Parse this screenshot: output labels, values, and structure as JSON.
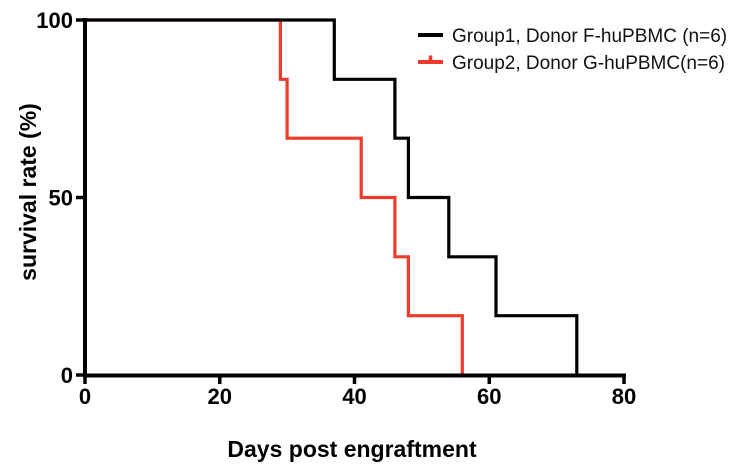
{
  "chart_data": {
    "type": "line",
    "subtype": "kaplan-meier-survival-step",
    "title": "",
    "xlabel": "Days post engraftment",
    "ylabel": "survival rate (%)",
    "xlim": [
      0,
      80
    ],
    "ylim": [
      0,
      100
    ],
    "x_ticks": [
      0,
      20,
      40,
      60,
      80
    ],
    "y_ticks": [
      0,
      50,
      100
    ],
    "grid": false,
    "legend_position": "top-right",
    "series": [
      {
        "name": "Group1, Donor F-huPBMC (n=6)",
        "color": "#000000",
        "n": 6,
        "start": {
          "day": 0,
          "survival_pct": 100
        },
        "steps": [
          {
            "day": 37,
            "survival_pct": 83.3
          },
          {
            "day": 46,
            "survival_pct": 66.7
          },
          {
            "day": 48,
            "survival_pct": 50
          },
          {
            "day": 54,
            "survival_pct": 33.3
          },
          {
            "day": 61,
            "survival_pct": 16.7
          },
          {
            "day": 73,
            "survival_pct": 0
          }
        ]
      },
      {
        "name": "Group2, Donor G-huPBMC(n=6)",
        "color": "#ef3b2c",
        "n": 6,
        "start": {
          "day": 0,
          "survival_pct": 100
        },
        "steps": [
          {
            "day": 29,
            "survival_pct": 83.3
          },
          {
            "day": 30,
            "survival_pct": 66.7
          },
          {
            "day": 41,
            "survival_pct": 50
          },
          {
            "day": 46,
            "survival_pct": 33.3
          },
          {
            "day": 48,
            "survival_pct": 16.7
          },
          {
            "day": 56,
            "survival_pct": 0
          }
        ]
      }
    ]
  },
  "legend": {
    "items": [
      {
        "label": "Group1, Donor F-huPBMC (n=6)",
        "color": "#000000",
        "symbol": "line"
      },
      {
        "label": "Group2, Donor G-huPBMC(n=6)",
        "color": "#ef3b2c",
        "symbol": "line-with-tick"
      }
    ]
  },
  "colors": {
    "axis": "#000000",
    "background": "#ffffff"
  }
}
